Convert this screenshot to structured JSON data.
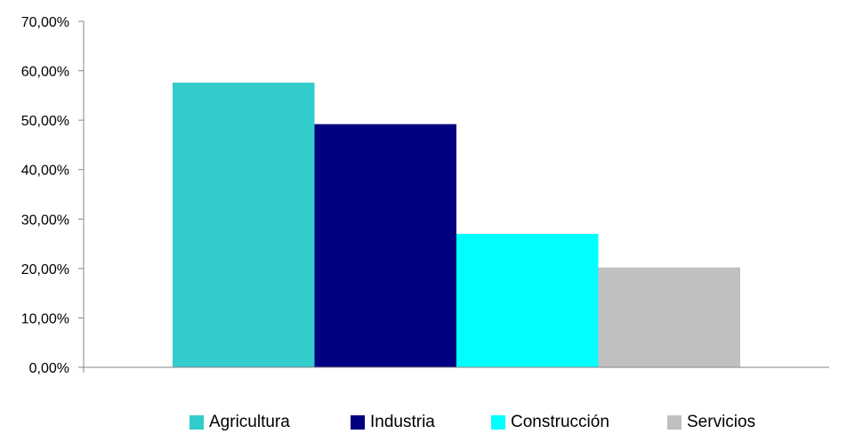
{
  "chart_data": {
    "type": "bar",
    "title": "",
    "xlabel": "",
    "ylabel": "",
    "ylim": [
      0,
      70
    ],
    "y_ticks": [
      "0,00%",
      "10,00%",
      "20,00%",
      "30,00%",
      "40,00%",
      "50,00%",
      "60,00%",
      "70,00%"
    ],
    "grid": false,
    "legend_position": "bottom",
    "categories": [
      ""
    ],
    "series": [
      {
        "name": "Agricultura",
        "values": [
          57.6
        ],
        "color": "#33CCCC"
      },
      {
        "name": "Industria",
        "values": [
          49.2
        ],
        "color": "#000080"
      },
      {
        "name": "Construcción",
        "values": [
          27.0
        ],
        "color": "#00FFFF"
      },
      {
        "name": "Servicios",
        "values": [
          20.2
        ],
        "color": "#C0C0C0"
      }
    ]
  }
}
